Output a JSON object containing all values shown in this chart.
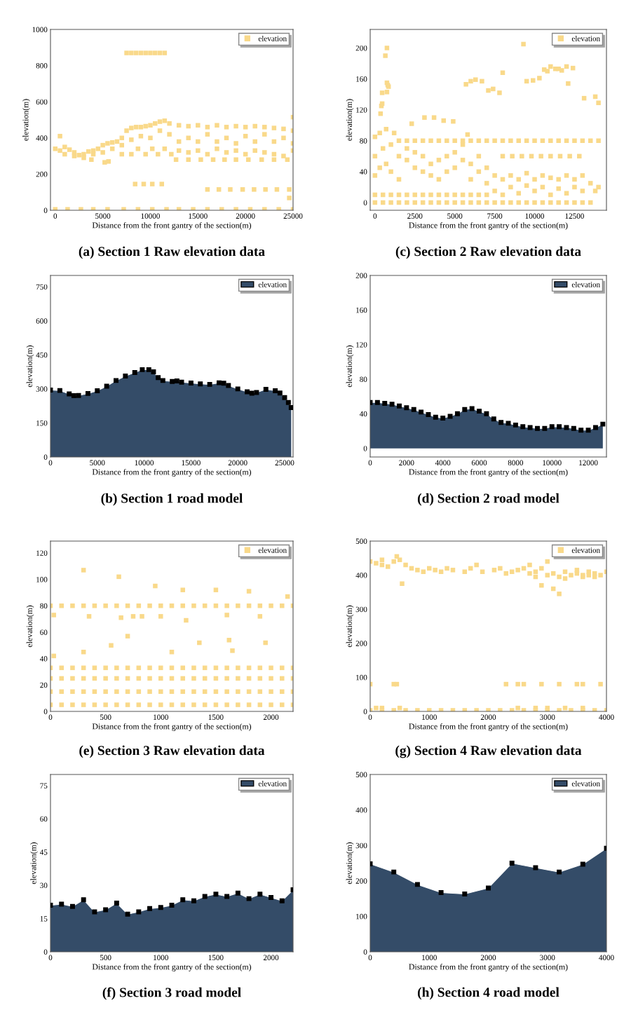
{
  "chart_data": [
    {
      "type": "scatter",
      "title": "(a) Section 1 Raw elevation data",
      "xlabel": "Distance from the front gantry of the section(m)",
      "ylabel": "elevation(m)",
      "xlim": [
        -500,
        25000
      ],
      "ylim": [
        0,
        1000
      ],
      "xticks": [
        0,
        5000,
        10000,
        15000,
        20000,
        25000
      ],
      "yticks": [
        0,
        200,
        400,
        600,
        800,
        1000
      ],
      "legend": "top right",
      "marker": "square",
      "grid": false,
      "series": [
        {
          "name": "elevation",
          "color": "#f9d98a",
          "x": [
            0,
            500,
            1000,
            1500,
            2000,
            2500,
            3000,
            3500,
            4000,
            4500,
            5000,
            5500,
            6000,
            6500,
            7000,
            7500,
            8000,
            8500,
            9000,
            9500,
            10000,
            10500,
            11000,
            11500,
            12000,
            13000,
            14000,
            15000,
            16000,
            17000,
            18000,
            19000,
            20000,
            21000,
            22000,
            23000,
            24000,
            25000,
            1000,
            2000,
            3000,
            4000,
            5000,
            6000,
            7000,
            8000,
            9000,
            10000,
            11000,
            12000,
            13000,
            14000,
            15000,
            16000,
            17000,
            18000,
            19000,
            20000,
            21000,
            22000,
            23000,
            24000,
            25000,
            13000,
            14000,
            15000,
            16000,
            17000,
            18000,
            19000,
            20000,
            21000,
            22000,
            23000,
            24000,
            25000,
            500,
            3800,
            5200,
            5600,
            7000,
            8000,
            8700,
            9500,
            10200,
            10800,
            11500,
            12200,
            12700,
            14000,
            15300,
            16600,
            17800,
            19000,
            20300,
            21700,
            23000,
            24400,
            7500,
            8000,
            8500,
            9000,
            9500,
            10000,
            10500,
            11000,
            11500,
            8400,
            9300,
            10200,
            11200,
            16000,
            17200,
            18400,
            19700,
            20900,
            22100,
            23300,
            24600,
            24600,
            25000,
            0,
            1300,
            2700,
            4000,
            5500,
            7200,
            8700,
            10200,
            11700,
            13000,
            14500,
            16000,
            17500,
            19000,
            20500,
            22000,
            23500,
            25000
          ],
          "values": [
            340,
            330,
            350,
            335,
            320,
            305,
            310,
            325,
            330,
            340,
            360,
            370,
            375,
            380,
            400,
            440,
            455,
            460,
            460,
            465,
            470,
            480,
            490,
            495,
            480,
            470,
            465,
            470,
            460,
            470,
            460,
            465,
            460,
            465,
            460,
            455,
            450,
            440,
            310,
            300,
            290,
            310,
            320,
            340,
            360,
            390,
            410,
            400,
            440,
            420,
            380,
            400,
            380,
            420,
            380,
            400,
            370,
            410,
            380,
            420,
            380,
            400,
            370,
            330,
            320,
            330,
            310,
            340,
            320,
            330,
            310,
            330,
            320,
            310,
            300,
            330,
            410,
            280,
            265,
            270,
            310,
            310,
            340,
            310,
            340,
            310,
            340,
            310,
            280,
            280,
            280,
            280,
            280,
            280,
            280,
            280,
            280,
            280,
            870,
            870,
            870,
            870,
            870,
            870,
            870,
            870,
            870,
            145,
            145,
            145,
            145,
            115,
            115,
            115,
            115,
            115,
            115,
            115,
            115,
            68,
            515,
            5,
            5,
            5,
            5,
            5,
            5,
            5,
            5,
            5,
            5,
            5,
            5,
            5,
            5,
            5,
            5,
            5,
            5
          ]
        }
      ]
    },
    {
      "type": "scatter",
      "title": "(c) Section 2 Raw elevation data",
      "xlabel": "Distance from the front gantry of the section(m)",
      "ylabel": "elevation(m)",
      "xlim": [
        -300,
        14500
      ],
      "ylim": [
        -10,
        224
      ],
      "xticks": [
        0,
        2500,
        5000,
        7500,
        10000,
        12500
      ],
      "yticks": [
        0,
        40,
        80,
        120,
        160,
        200
      ],
      "legend": "top right",
      "marker": "square",
      "grid": false,
      "series": [
        {
          "name": "elevation",
          "color": "#f9d98a",
          "x": [
            1500,
            2000,
            2500,
            3000,
            3500,
            4000,
            4500,
            5000,
            5500,
            6000,
            6500,
            7000,
            7500,
            8000,
            8500,
            9000,
            9500,
            10000,
            10500,
            11000,
            11500,
            12000,
            12500,
            13000,
            13500,
            14000,
            0,
            500,
            1000,
            1500,
            2000,
            2500,
            3000,
            3500,
            4000,
            4500,
            5000,
            5500,
            6000,
            6500,
            7000,
            7500,
            8000,
            8500,
            9000,
            9500,
            10000,
            10500,
            11000,
            11500,
            12000,
            12500,
            13000,
            13500,
            0,
            500,
            1000,
            1500,
            2000,
            2500,
            3000,
            3500,
            4000,
            4500,
            5000,
            5500,
            6000,
            6500,
            7000,
            0,
            0,
            0,
            300,
            300,
            500,
            700,
            700,
            1000,
            1000,
            1200,
            1500,
            1500,
            2000,
            2000,
            2500,
            2500,
            3000,
            3000,
            3500,
            3500,
            4000,
            4000,
            4500,
            4500,
            5000,
            5000,
            5500,
            5500,
            5800,
            6000,
            6000,
            6500,
            6500,
            7000,
            7000,
            7500,
            7500,
            8000,
            8000,
            8500,
            8500,
            9000,
            9000,
            9500,
            9500,
            10000,
            10000,
            10500,
            10500,
            11000,
            11000,
            11500,
            11500,
            12000,
            12000,
            12500,
            12500,
            13000,
            13000,
            13500,
            14000,
            13800,
            350,
            400,
            450,
            450,
            650,
            750,
            750,
            800,
            850,
            750,
            3100,
            3700,
            4300,
            4900,
            2300,
            5700,
            6000,
            6300,
            6700,
            7100,
            7400,
            7800,
            8000,
            9300,
            9500,
            9900,
            10300,
            10600,
            10800,
            11000,
            11300,
            11500,
            11700,
            12000,
            12100,
            12400,
            13100,
            13800,
            14000,
            8000,
            8600,
            9200,
            9800,
            10400,
            11000,
            11600,
            12200,
            12800
          ],
          "values": [
            80,
            80,
            80,
            80,
            80,
            80,
            80,
            80,
            80,
            80,
            80,
            80,
            80,
            80,
            80,
            80,
            80,
            80,
            80,
            80,
            80,
            80,
            80,
            80,
            80,
            80,
            0,
            0,
            0,
            0,
            0,
            0,
            0,
            0,
            0,
            0,
            0,
            0,
            0,
            0,
            0,
            0,
            0,
            0,
            0,
            0,
            0,
            0,
            0,
            0,
            0,
            0,
            0,
            0,
            10,
            10,
            10,
            10,
            10,
            10,
            10,
            10,
            10,
            10,
            10,
            10,
            10,
            10,
            10,
            35,
            60,
            85,
            45,
            90,
            70,
            50,
            95,
            40,
            75,
            90,
            60,
            30,
            55,
            70,
            45,
            65,
            40,
            60,
            35,
            50,
            30,
            55,
            40,
            60,
            45,
            65,
            55,
            75,
            88,
            50,
            30,
            60,
            40,
            45,
            25,
            35,
            15,
            30,
            10,
            35,
            20,
            30,
            12,
            38,
            22,
            30,
            15,
            35,
            20,
            32,
            10,
            30,
            18,
            35,
            12,
            30,
            20,
            35,
            15,
            25,
            20,
            15,
            115,
            125,
            128,
            142,
            190,
            200,
            155,
            152,
            150,
            143,
            110,
            110,
            106,
            105,
            102,
            153,
            157,
            159,
            157,
            145,
            147,
            142,
            168,
            205,
            157,
            158,
            161,
            172,
            170,
            176,
            173,
            173,
            171,
            176,
            154,
            174,
            135,
            137,
            129,
            60,
            60,
            60,
            60,
            60,
            60,
            60,
            60,
            60
          ]
        }
      ]
    },
    {
      "type": "area",
      "title": "(b) Section 1 road model",
      "xlabel": "Distance from the front gantry of the section(m)",
      "ylabel": "elevation(m)",
      "xlim": [
        0,
        25900
      ],
      "ylim": [
        0,
        800
      ],
      "xticks": [
        0,
        5000,
        10000,
        15000,
        20000,
        25000
      ],
      "yticks": [
        0,
        150,
        300,
        450,
        600,
        750
      ],
      "legend": "top right",
      "marker": "square",
      "grid": false,
      "x": [
        0,
        1000,
        2000,
        2500,
        3000,
        4000,
        5000,
        6000,
        7000,
        8000,
        9000,
        9800,
        10500,
        11000,
        11500,
        12000,
        13000,
        13500,
        14000,
        15000,
        16000,
        17000,
        18000,
        18500,
        19000,
        20000,
        21000,
        21500,
        22000,
        23000,
        24000,
        24500,
        25000,
        25400,
        25700
      ],
      "series": [
        {
          "name": "elevation",
          "color": "#344c68",
          "values": [
            295,
            293,
            278,
            270,
            271,
            280,
            292,
            312,
            337,
            357,
            372,
            385,
            385,
            375,
            350,
            337,
            333,
            335,
            330,
            326,
            322,
            320,
            327,
            325,
            315,
            300,
            287,
            281,
            284,
            298,
            292,
            282,
            262,
            240,
            218
          ]
        }
      ]
    },
    {
      "type": "area",
      "title": "(d) Section 2 road model",
      "xlabel": "Distance from the front gantry of the section(m)",
      "ylabel": "elevation(m)",
      "xlim": [
        0,
        13000
      ],
      "ylim": [
        -10,
        200
      ],
      "xticks": [
        0,
        2000,
        4000,
        6000,
        8000,
        10000,
        12000
      ],
      "yticks": [
        0,
        40,
        80,
        120,
        160,
        200
      ],
      "legend": "top right",
      "marker": "square",
      "grid": false,
      "x": [
        0,
        400,
        800,
        1200,
        1600,
        2000,
        2400,
        2800,
        3200,
        3600,
        4000,
        4400,
        4800,
        5200,
        5600,
        6000,
        6400,
        6800,
        7200,
        7600,
        8000,
        8400,
        8800,
        9200,
        9600,
        10000,
        10400,
        10800,
        11200,
        11600,
        12000,
        12400,
        12800
      ],
      "series": [
        {
          "name": "elevation",
          "color": "#344c68",
          "values": [
            53,
            53,
            52,
            51,
            49,
            47,
            45,
            42,
            39,
            36,
            35,
            37,
            40,
            45,
            46,
            43,
            40,
            34,
            30,
            29,
            27,
            25,
            24,
            23,
            23,
            25,
            25,
            24,
            23,
            21,
            21,
            24,
            28
          ]
        }
      ]
    },
    {
      "type": "scatter",
      "title": "(e) Section 3 Raw elevation data",
      "xlabel": "Distance from the front gantry of the section(m)",
      "ylabel": "elevation(m)",
      "xlim": [
        0,
        2200
      ],
      "ylim": [
        0,
        129
      ],
      "xticks": [
        0,
        500,
        1000,
        1500,
        2000
      ],
      "yticks": [
        0,
        20,
        40,
        60,
        80,
        100,
        120
      ],
      "legend": "top right",
      "marker": "square",
      "grid": false,
      "series": [
        {
          "name": "elevation",
          "color": "#f9d98a",
          "x": [
            0,
            100,
            200,
            300,
            400,
            500,
            600,
            700,
            800,
            900,
            1000,
            1100,
            1200,
            1300,
            1400,
            1500,
            1600,
            1700,
            1800,
            1900,
            2000,
            2100,
            2200,
            0,
            100,
            200,
            300,
            400,
            500,
            600,
            700,
            800,
            900,
            1000,
            1100,
            1200,
            1300,
            1400,
            1500,
            1600,
            1700,
            1800,
            1900,
            2000,
            2100,
            2200,
            0,
            100,
            200,
            300,
            400,
            500,
            600,
            700,
            800,
            900,
            1000,
            1100,
            1200,
            1300,
            1400,
            1500,
            1600,
            1700,
            1800,
            1900,
            2000,
            2100,
            2200,
            0,
            100,
            200,
            300,
            400,
            500,
            600,
            700,
            800,
            900,
            1000,
            1100,
            1200,
            1300,
            1400,
            1500,
            1600,
            1700,
            1800,
            1900,
            2000,
            2100,
            2200,
            0,
            100,
            200,
            300,
            400,
            500,
            600,
            700,
            800,
            900,
            1000,
            1100,
            1200,
            1300,
            1400,
            1500,
            1600,
            1700,
            1800,
            1900,
            2000,
            2100,
            2200,
            30,
            300,
            350,
            620,
            640,
            700,
            750,
            830,
            950,
            1000,
            1200,
            1230,
            1500,
            1600,
            1620,
            1800,
            1900,
            1950,
            2150,
            30,
            300,
            550,
            1100,
            1350,
            1650
          ],
          "values": [
            5,
            5,
            5,
            5,
            5,
            5,
            5,
            5,
            5,
            5,
            5,
            5,
            5,
            5,
            5,
            5,
            5,
            5,
            5,
            5,
            5,
            5,
            5,
            15,
            15,
            15,
            15,
            15,
            15,
            15,
            15,
            15,
            15,
            15,
            15,
            15,
            15,
            15,
            15,
            15,
            15,
            15,
            15,
            15,
            15,
            15,
            25,
            25,
            25,
            25,
            25,
            25,
            25,
            25,
            25,
            25,
            25,
            25,
            25,
            25,
            25,
            25,
            25,
            25,
            25,
            25,
            25,
            25,
            25,
            33,
            33,
            33,
            33,
            33,
            33,
            33,
            33,
            33,
            33,
            33,
            33,
            33,
            33,
            33,
            33,
            33,
            33,
            33,
            33,
            33,
            33,
            33,
            80,
            80,
            80,
            80,
            80,
            80,
            80,
            80,
            80,
            80,
            80,
            80,
            80,
            80,
            80,
            80,
            80,
            80,
            80,
            80,
            80,
            80,
            80,
            73,
            107,
            72,
            102,
            71,
            57,
            72,
            72,
            95,
            72,
            92,
            69,
            92,
            73,
            54,
            91,
            72,
            52,
            87,
            42,
            45,
            50,
            45,
            52,
            46
          ]
        }
      ]
    },
    {
      "type": "scatter",
      "title": "(g) Section 4 Raw elevation data",
      "xlabel": "Distance from the front gantry of the section(m)",
      "ylabel": "elevation(m)",
      "xlim": [
        0,
        4000
      ],
      "ylim": [
        0,
        500
      ],
      "xticks": [
        0,
        1000,
        2000,
        3000,
        4000
      ],
      "yticks": [
        0,
        100,
        200,
        300,
        400,
        500
      ],
      "legend": "top right",
      "marker": "square",
      "grid": false,
      "series": [
        {
          "name": "elevation",
          "color": "#f9d98a",
          "x": [
            0,
            100,
            200,
            300,
            400,
            500,
            600,
            700,
            800,
            900,
            1000,
            1100,
            1200,
            1300,
            1400,
            1600,
            1700,
            1800,
            1900,
            2100,
            2200,
            2300,
            2400,
            2500,
            2600,
            2700,
            2800,
            2900,
            3000,
            3100,
            3200,
            3300,
            3400,
            3500,
            3600,
            3700,
            3800,
            3900,
            4000,
            2700,
            3000,
            2900,
            3100,
            3200,
            3300,
            2800,
            3500,
            3600,
            3700,
            3800,
            540,
            200,
            450,
            0,
            400,
            450,
            2300,
            2500,
            2600,
            2900,
            3200,
            3500,
            3600,
            3900,
            0,
            200,
            400,
            600,
            800,
            1000,
            1200,
            1400,
            1600,
            1800,
            2000,
            2200,
            2400,
            2600,
            2800,
            3000,
            3200,
            3400,
            3600,
            3800,
            4000,
            100,
            200,
            500,
            2500,
            2800,
            3000,
            3300,
            3600
          ],
          "values": [
            440,
            435,
            430,
            425,
            440,
            445,
            430,
            420,
            415,
            410,
            420,
            415,
            410,
            420,
            415,
            410,
            420,
            430,
            410,
            415,
            420,
            405,
            410,
            415,
            420,
            405,
            410,
            420,
            400,
            405,
            395,
            410,
            400,
            405,
            400,
            410,
            405,
            400,
            410,
            430,
            440,
            370,
            360,
            345,
            390,
            395,
            415,
            395,
            400,
            395,
            375,
            445,
            455,
            80,
            80,
            80,
            80,
            80,
            80,
            80,
            80,
            80,
            80,
            80,
            3,
            3,
            3,
            3,
            3,
            3,
            3,
            3,
            3,
            3,
            3,
            3,
            3,
            3,
            3,
            3,
            3,
            3,
            3,
            3,
            3,
            10,
            10,
            10,
            10,
            10,
            10,
            10,
            10
          ]
        }
      ]
    },
    {
      "type": "area",
      "title": "(f) Section 3 road model",
      "xlabel": "Distance from the front gantry of the section(m)",
      "ylabel": "elevation(m)",
      "xlim": [
        0,
        2200
      ],
      "ylim": [
        0,
        80
      ],
      "xticks": [
        0,
        500,
        1000,
        1500,
        2000
      ],
      "yticks": [
        0,
        15,
        30,
        45,
        60,
        75
      ],
      "legend": "top right",
      "marker": "square",
      "grid": false,
      "x": [
        0,
        100,
        200,
        300,
        400,
        500,
        600,
        700,
        800,
        900,
        1000,
        1100,
        1200,
        1300,
        1400,
        1500,
        1600,
        1700,
        1800,
        1900,
        2000,
        2100,
        2200
      ],
      "series": [
        {
          "name": "elevation",
          "color": "#344c68",
          "values": [
            21,
            21.5,
            20.5,
            23.5,
            18,
            19,
            22,
            17,
            18,
            19.5,
            20,
            21,
            23.5,
            23,
            25,
            26,
            25,
            26.5,
            24,
            26,
            24.5,
            23,
            28
          ]
        }
      ]
    },
    {
      "type": "area",
      "title": "(h) Section 4 road model",
      "xlabel": "Distance from the front gantry of the section(m)",
      "ylabel": "elevation(m)",
      "xlim": [
        0,
        4000
      ],
      "ylim": [
        0,
        500
      ],
      "xticks": [
        0,
        1000,
        2000,
        3000,
        4000
      ],
      "yticks": [
        0,
        100,
        200,
        300,
        400,
        500
      ],
      "legend": "top right",
      "marker": "square",
      "grid": false,
      "x": [
        0,
        400,
        800,
        1200,
        1600,
        2000,
        2400,
        2800,
        3200,
        3600,
        4000
      ],
      "series": [
        {
          "name": "elevation",
          "color": "#344c68",
          "values": [
            248,
            225,
            190,
            167,
            163,
            180,
            250,
            237,
            225,
            247,
            292
          ]
        }
      ]
    }
  ]
}
